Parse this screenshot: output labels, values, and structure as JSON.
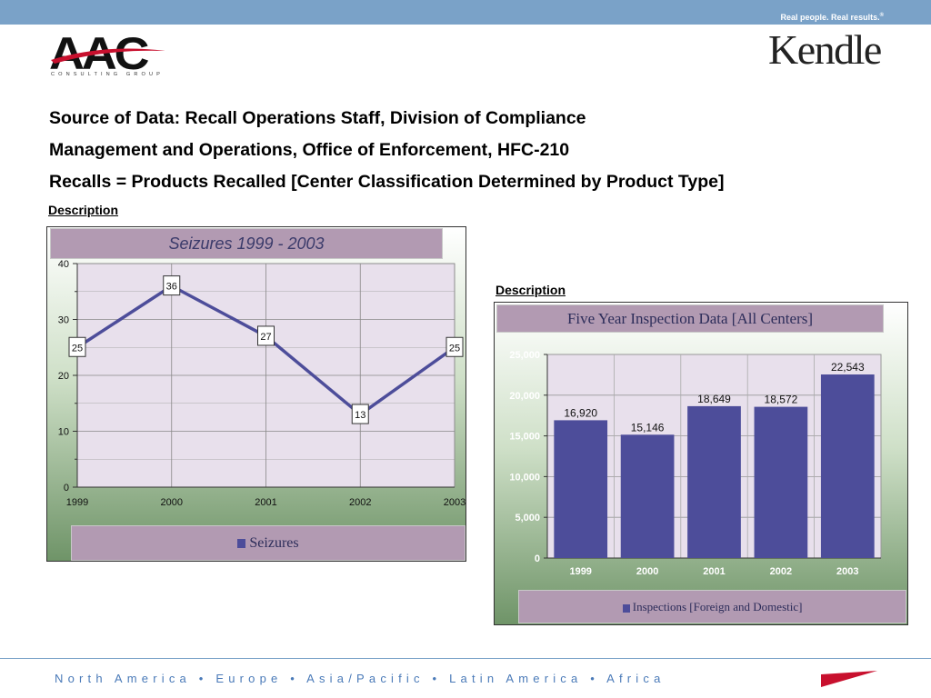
{
  "header": {
    "tagline": "Real people. Real results.",
    "tagline_mark": "®",
    "aac_logo": {
      "letters": "AAC",
      "subtitle": "CONSULTING GROUP"
    },
    "kendle_logo": "Kendle"
  },
  "headlines": [
    "Source of Data: Recall Operations Staff, Division of Compliance",
    "Management and Operations, Office of Enforcement, HFC-210",
    "Recalls = Products Recalled [Center Classification Determined by Product Type]"
  ],
  "desc_left": "Description",
  "desc_right": "Description",
  "footer": {
    "regions": "North America • Europe • Asia/Pacific • Latin America • Africa"
  },
  "colors": {
    "top_bar": "#7aa2c8",
    "series": "#4d4d9a",
    "title_box": "#b29ab2",
    "plot_bg": "#e8e0ec",
    "footer_text": "#4a7ab8",
    "flag": "#c8102e"
  },
  "chart_data": [
    {
      "type": "line",
      "title": "Seizures 1999 - 2003",
      "x": [
        "1999",
        "2000",
        "2001",
        "2002",
        "2003"
      ],
      "series": [
        {
          "name": "Seizures",
          "values": [
            25,
            36,
            27,
            13,
            25
          ]
        }
      ],
      "data_labels": [
        "25",
        "36",
        "27",
        "13",
        "25"
      ],
      "ylim": [
        0,
        40
      ],
      "yticks": [
        "0",
        "10",
        "20",
        "30",
        "40"
      ],
      "grid": true,
      "legend": "bottom"
    },
    {
      "type": "bar",
      "title": "Five Year Inspection Data [All Centers]",
      "categories": [
        "1999",
        "2000",
        "2001",
        "2002",
        "2003"
      ],
      "series": [
        {
          "name": "Inspections [Foreign and Domestic]",
          "values": [
            16920,
            15146,
            18649,
            18572,
            22543
          ]
        }
      ],
      "data_labels": [
        "16,920",
        "15,146",
        "18,649",
        "18,572",
        "22,543"
      ],
      "ylim": [
        0,
        25000
      ],
      "yticks": [
        "0",
        "5,000",
        "10,000",
        "15,000",
        "20,000",
        "25,000"
      ],
      "grid": true,
      "legend": "bottom"
    }
  ]
}
